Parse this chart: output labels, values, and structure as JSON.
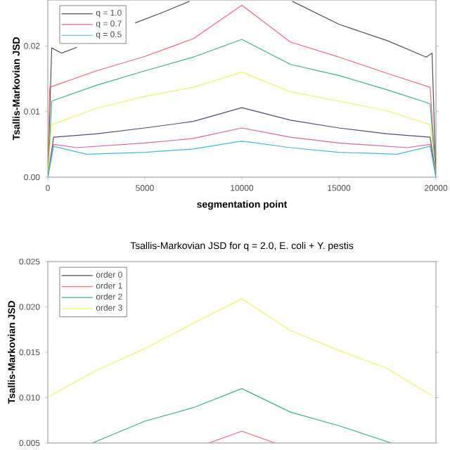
{
  "chart_data": [
    {
      "type": "line",
      "xlabel": "segmentation point",
      "ylabel": "Tsallis-Markovian JSD",
      "xlim": [
        0,
        20000
      ],
      "xticks": [
        0,
        5000,
        10000,
        15000,
        20000
      ],
      "ylim": [
        0,
        0.027
      ],
      "yticks": [
        {
          "value": 0,
          "label": "0.00"
        },
        {
          "value": 0.01,
          "label": "0.01"
        },
        {
          "value": 0.02,
          "label": "0.02"
        }
      ],
      "legend": "top left",
      "series": [
        {
          "color": "#505050",
          "x": [
            0,
            200,
            700,
            1500,
            3000,
            4500,
            6000,
            7300,
            10000,
            12600,
            15000,
            17500,
            19500,
            19800,
            20000
          ],
          "values": [
            0,
            0.0197,
            0.0189,
            0.0198,
            null,
            0.0235,
            0.0252,
            0.0268,
            null,
            0.0268,
            0.0233,
            0.0208,
            0.0183,
            0.0189,
            0
          ]
        },
        {
          "color": "#f06a78",
          "x": [
            0,
            100,
            2500,
            5000,
            7500,
            10000,
            12500,
            15000,
            17500,
            19700,
            20000
          ],
          "values": [
            0,
            0.0137,
            0.0162,
            0.0184,
            0.0211,
            0.0262,
            0.0206,
            0.0183,
            0.0158,
            0.0137,
            0
          ]
        },
        {
          "color": "#3fae8c",
          "x": [
            0,
            200,
            2500,
            5000,
            7500,
            10000,
            12500,
            15000,
            17500,
            19700,
            20000
          ],
          "values": [
            0,
            0.0116,
            0.014,
            0.0162,
            0.0183,
            0.021,
            0.0172,
            0.0155,
            0.0133,
            0.0112,
            0
          ]
        },
        {
          "color": "#f2f064",
          "x": [
            0,
            200,
            2500,
            5000,
            7500,
            10000,
            12500,
            15000,
            17500,
            19700,
            20000
          ],
          "values": [
            0,
            0.008,
            0.0105,
            0.0123,
            0.0137,
            0.016,
            0.013,
            0.0116,
            0.0101,
            0.008,
            0
          ]
        },
        {
          "name": "q = 1.0",
          "color": "#4c4c7a",
          "x": [
            0,
            300,
            2500,
            5000,
            7500,
            10000,
            12500,
            15000,
            17500,
            19700,
            20000
          ],
          "values": [
            0,
            0.0061,
            0.0066,
            0.0075,
            0.0085,
            0.0106,
            0.0087,
            0.0075,
            0.0066,
            0.0061,
            0
          ]
        },
        {
          "name": "q = 0.7",
          "color": "#e0609e",
          "x": [
            0,
            300,
            1500,
            5000,
            7500,
            10000,
            12500,
            15000,
            18500,
            19700,
            20000
          ],
          "values": [
            0,
            0.005,
            0.0045,
            0.0052,
            0.0059,
            0.0075,
            0.0061,
            0.0052,
            0.0045,
            0.005,
            0
          ]
        },
        {
          "name": "q = 0.5",
          "color": "#3fbcd2",
          "x": [
            0,
            300,
            2000,
            5000,
            7500,
            10000,
            12500,
            15000,
            18000,
            19700,
            20000
          ],
          "values": [
            0,
            0.0047,
            0.0035,
            0.0038,
            0.0043,
            0.0055,
            0.0045,
            0.0038,
            0.0035,
            0.0047,
            0
          ]
        }
      ]
    },
    {
      "type": "line",
      "title": "Tsallis-Markovian JSD for q = 2.0, E. coli + Y. pestis",
      "ylabel": "Tsallis-Markovian JSD",
      "xlim": [
        0,
        20000
      ],
      "ylim": [
        0.005,
        0.025
      ],
      "yticks": [
        {
          "value": 0.005,
          "label": "0.005"
        },
        {
          "value": 0.01,
          "label": "0.010"
        },
        {
          "value": 0.015,
          "label": "0.015"
        },
        {
          "value": 0.02,
          "label": "0.020"
        },
        {
          "value": 0.025,
          "label": "0.025"
        }
      ],
      "tick_labels": "y",
      "legend": "top left",
      "series": [
        {
          "name": "order 0",
          "color": "#505050"
        },
        {
          "name": "order 1",
          "color": "#f06a78",
          "x": [
            8300,
            10000,
            11700
          ],
          "values": [
            0.005,
            0.0063,
            0.005
          ]
        },
        {
          "name": "order 2",
          "color": "#3fae8c",
          "x": [
            2300,
            5000,
            7500,
            10000,
            12500,
            15000,
            17700
          ],
          "values": [
            0.005,
            0.0074,
            0.0089,
            0.011,
            0.0084,
            0.0069,
            0.005
          ]
        },
        {
          "name": "order 3",
          "color": "#f2f064",
          "x": [
            100,
            2500,
            5000,
            7500,
            10000,
            12500,
            15000,
            17500,
            19800
          ],
          "values": [
            0.0102,
            0.013,
            0.0154,
            0.0182,
            0.0209,
            0.0174,
            0.0152,
            0.0132,
            0.0102
          ]
        }
      ]
    }
  ]
}
